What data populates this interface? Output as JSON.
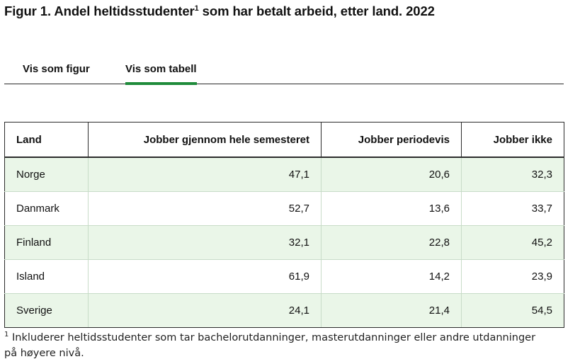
{
  "title": {
    "text": "Figur 1. Andel heltidsstudenter",
    "marker": "1",
    "suffix": " som har betalt arbeid, etter land. 2022"
  },
  "tabs": [
    {
      "label": "Vis som figur",
      "active": false
    },
    {
      "label": "Vis som tabell",
      "active": true
    }
  ],
  "table": {
    "headers": [
      "Land",
      "Jobber gjennom hele semesteret",
      "Jobber periodevis",
      "Jobber ikke"
    ],
    "rows": [
      [
        "Norge",
        "47,1",
        "20,6",
        "32,3"
      ],
      [
        "Danmark",
        "52,7",
        "13,6",
        "33,7"
      ],
      [
        "Finland",
        "32,1",
        "22,8",
        "45,2"
      ],
      [
        "Island",
        "61,9",
        "14,2",
        "23,9"
      ],
      [
        "Sverige",
        "24,1",
        "21,4",
        "54,5"
      ]
    ]
  },
  "footnote": {
    "marker": "1",
    "text": " Inkluderer heltidsstudenter som tar bachelorutdanninger, masterutdanninger eller andre utdanninger på høyere nivå."
  },
  "colors": {
    "accent": "#1f8b3b",
    "row_stripe": "#eaf6e8"
  }
}
